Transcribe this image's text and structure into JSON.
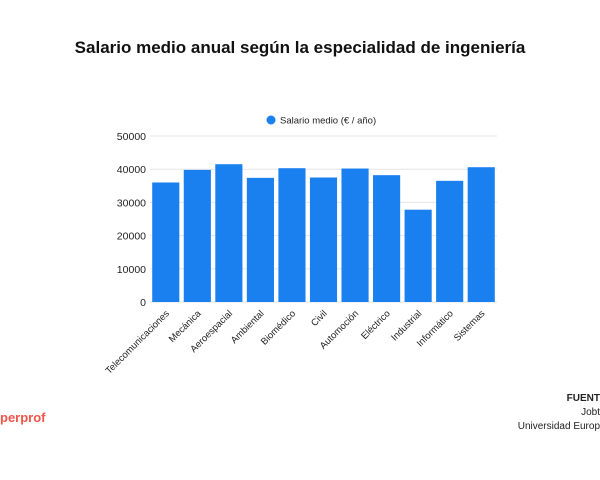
{
  "title": "Salario medio anual según la especialidad de ingeniería",
  "brand": "perprof",
  "source": {
    "label": "FUENT",
    "lines": [
      "Jobt",
      "Universidad Europ"
    ]
  },
  "colors": {
    "bar": "#1a7fef"
  },
  "chart_data": {
    "type": "bar",
    "categories": [
      "Telecomunicaciones",
      "Mecánica",
      "Aeroespacial",
      "Ambiental",
      "Biomédico",
      "Civil",
      "Automoción",
      "Eléctrico",
      "Industrial",
      "Informático",
      "Sistemas"
    ],
    "series": [
      {
        "name": "Salario medio (€ / año)",
        "values": [
          36000,
          39800,
          41500,
          37400,
          40300,
          37500,
          40200,
          38200,
          27800,
          36500,
          40600
        ]
      }
    ],
    "ylim": [
      0,
      50000
    ],
    "yticks": [
      0,
      10000,
      20000,
      30000,
      40000,
      50000
    ],
    "grid": true,
    "legend": "top"
  }
}
